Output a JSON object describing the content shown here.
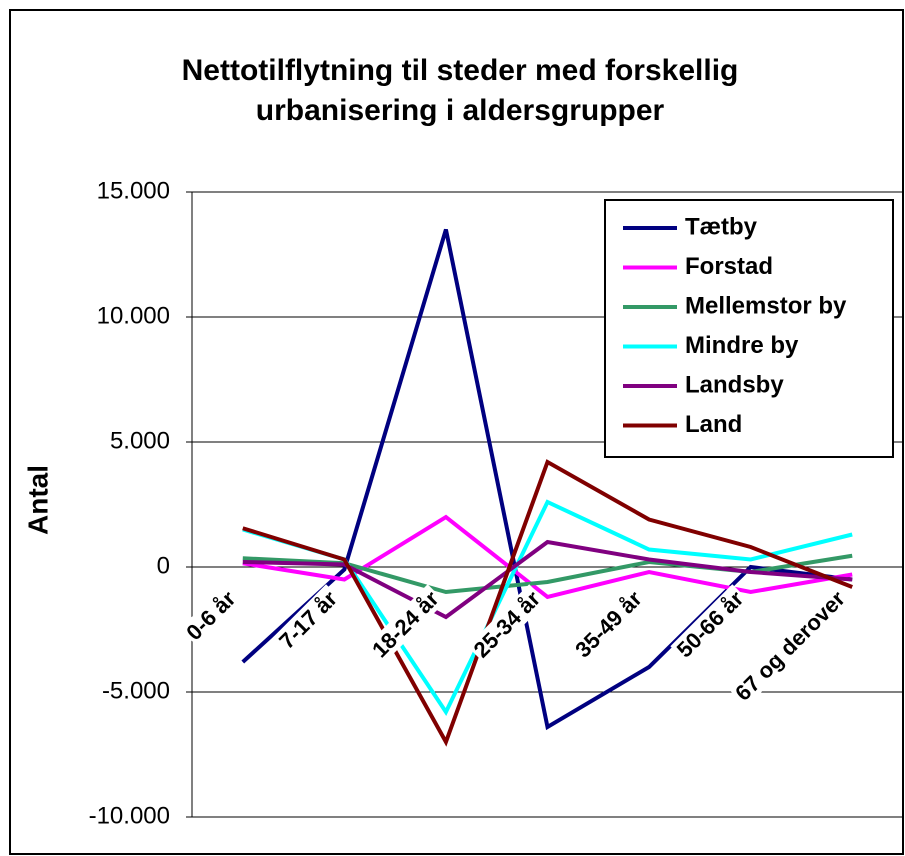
{
  "chart_data": {
    "type": "line",
    "title": [
      "Nettotilflytning til steder med forskellig",
      "urbanisering i aldersgrupper"
    ],
    "y_label": "Antal",
    "categories": [
      "0-6 år",
      "7-17 år",
      "18-24 år",
      "25-34 år",
      "35-49 år",
      "50-66 år",
      "67 og derover"
    ],
    "series": [
      {
        "name": "Tætby",
        "color": "#000080",
        "values": [
          -3800,
          -100,
          13500,
          -6400,
          -4000,
          0,
          -500
        ]
      },
      {
        "name": "Forstad",
        "color": "#ff00ff",
        "values": [
          150,
          -500,
          2000,
          -1200,
          -200,
          -1000,
          -300
        ]
      },
      {
        "name": "Mellemstor by",
        "color": "#339966",
        "values": [
          350,
          150,
          -1000,
          -600,
          200,
          -200,
          450
        ]
      },
      {
        "name": "Mindre by",
        "color": "#00ffff",
        "values": [
          1500,
          300,
          -5800,
          2600,
          700,
          300,
          1300
        ]
      },
      {
        "name": "Landsby",
        "color": "#800080",
        "values": [
          200,
          100,
          -2000,
          1000,
          300,
          -200,
          -500
        ]
      },
      {
        "name": "Land",
        "color": "#800000",
        "values": [
          1550,
          300,
          -7000,
          4200,
          1900,
          800,
          -800
        ]
      }
    ],
    "ylim": [
      -10000,
      15000
    ],
    "yticks": [
      {
        "value": -10000,
        "label": "-10.000"
      },
      {
        "value": -5000,
        "label": "-5.000"
      },
      0,
      {
        "value": 5000,
        "label": "5.000"
      },
      {
        "value": 10000,
        "label": "10.000"
      },
      {
        "value": 15000,
        "label": "15.000"
      }
    ],
    "grid": true,
    "legend": "top-right"
  }
}
